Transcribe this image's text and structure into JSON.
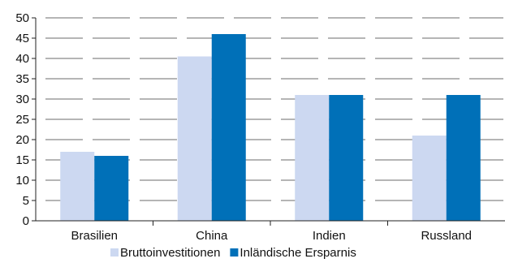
{
  "chart_data": {
    "type": "bar",
    "categories": [
      "Brasilien",
      "China",
      "Indien",
      "Russland"
    ],
    "series": [
      {
        "name": "Bruttoinvestitionen",
        "color": "#ccd8f1",
        "values": [
          17,
          40.5,
          31,
          21
        ]
      },
      {
        "name": "Inländische Ersparnis",
        "color": "#0070b8",
        "values": [
          16,
          46,
          31,
          31
        ]
      }
    ],
    "ylim": [
      0,
      50
    ],
    "yticks": [
      0,
      5,
      10,
      15,
      20,
      25,
      30,
      35,
      40,
      45,
      50
    ],
    "grid": true,
    "legend_position": "bottom"
  }
}
